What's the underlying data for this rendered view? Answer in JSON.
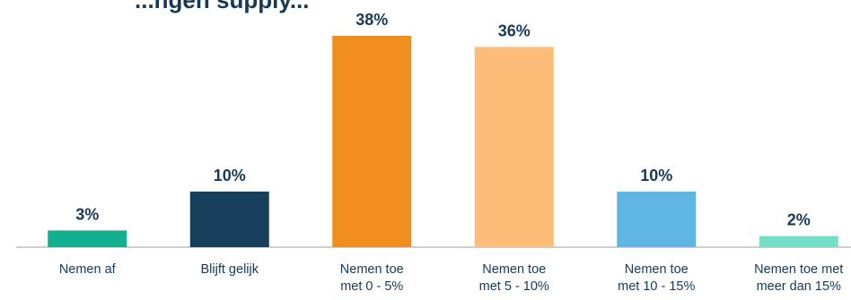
{
  "chart_data": {
    "type": "bar",
    "title": "...ngen supply...",
    "categories": [
      [
        "Nemen af"
      ],
      [
        "Blijft gelijk"
      ],
      [
        "Nemen toe",
        "met 0 - 5%"
      ],
      [
        "Nemen toe",
        "met 5 - 10%"
      ],
      [
        "Nemen toe",
        "met 10 - 15%"
      ],
      [
        "Nemen toe met",
        "meer dan 15%"
      ]
    ],
    "values": [
      3,
      10,
      38,
      36,
      10,
      2
    ],
    "value_labels": [
      "3%",
      "10%",
      "38%",
      "36%",
      "10%",
      "2%"
    ],
    "colors": [
      "#12b08f",
      "#163f5b",
      "#f08e1f",
      "#fdbd79",
      "#5fb6e3",
      "#74dfc7"
    ],
    "ylim": [
      0,
      38
    ],
    "grid": false,
    "legend": "none",
    "xlabel": "",
    "ylabel": ""
  }
}
